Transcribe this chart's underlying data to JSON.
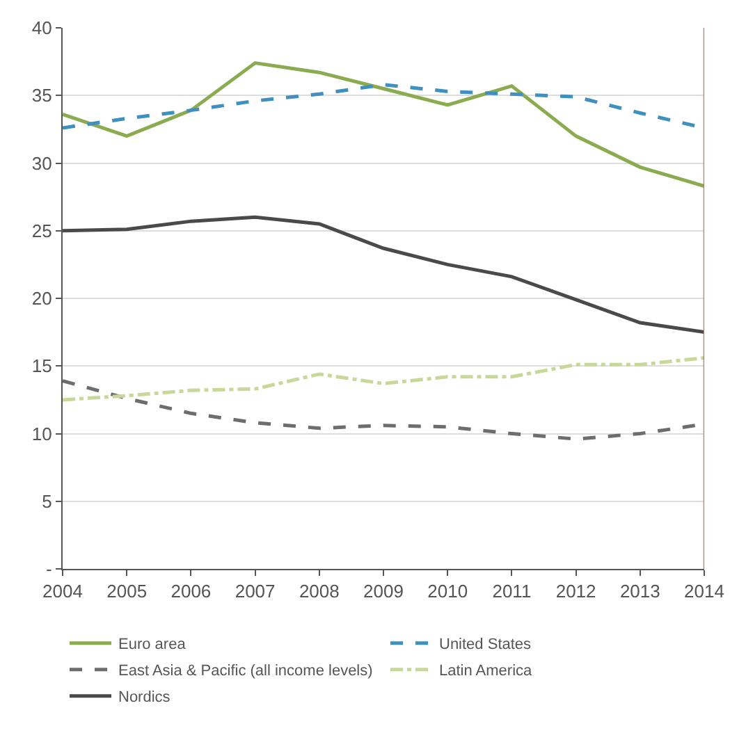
{
  "chart_data": {
    "type": "line",
    "x": [
      2004,
      2005,
      2006,
      2007,
      2008,
      2009,
      2010,
      2011,
      2012,
      2013,
      2014
    ],
    "series": [
      {
        "name": "Euro area",
        "color": "#8aab4f",
        "line_style": "solid",
        "values": [
          33.6,
          32.0,
          33.9,
          37.4,
          36.7,
          35.5,
          34.3,
          35.7,
          32.0,
          29.7,
          28.3
        ]
      },
      {
        "name": "United States",
        "color": "#3f8fbf",
        "line_style": "dashed",
        "values": [
          32.6,
          33.3,
          33.9,
          34.6,
          35.1,
          35.8,
          35.3,
          35.1,
          34.9,
          33.7,
          32.6
        ]
      },
      {
        "name": "East Asia & Pacific (all income levels)",
        "color": "#6d6d6d",
        "line_style": "dashed",
        "values": [
          13.9,
          12.6,
          11.5,
          10.8,
          10.4,
          10.6,
          10.5,
          10.0,
          9.6,
          10.0,
          10.7
        ]
      },
      {
        "name": "Latin America",
        "color": "#c8d89a",
        "line_style": "dashdot",
        "values": [
          12.5,
          12.8,
          13.2,
          13.3,
          14.4,
          13.7,
          14.2,
          14.2,
          15.1,
          15.1,
          15.6
        ]
      },
      {
        "name": "Nordics",
        "color": "#4a4a4a",
        "line_style": "solid",
        "values": [
          25.0,
          25.1,
          25.7,
          26.0,
          25.5,
          23.7,
          22.5,
          21.6,
          19.9,
          18.2,
          17.5
        ]
      }
    ],
    "xlim": [
      2004,
      2014
    ],
    "xticks": [
      2004,
      2005,
      2006,
      2007,
      2008,
      2009,
      2010,
      2011,
      2012,
      2013,
      2014
    ],
    "ylim": [
      0,
      40
    ],
    "yticks": [
      {
        "value": 0,
        "label": "-"
      },
      5,
      10,
      15,
      20,
      25,
      30,
      35,
      40
    ],
    "ref_lines": [
      {
        "axis": "x",
        "value": 2014,
        "label": null,
        "color": "#e06060"
      }
    ],
    "grid": "y",
    "legend": "bottom",
    "marker": "none"
  }
}
